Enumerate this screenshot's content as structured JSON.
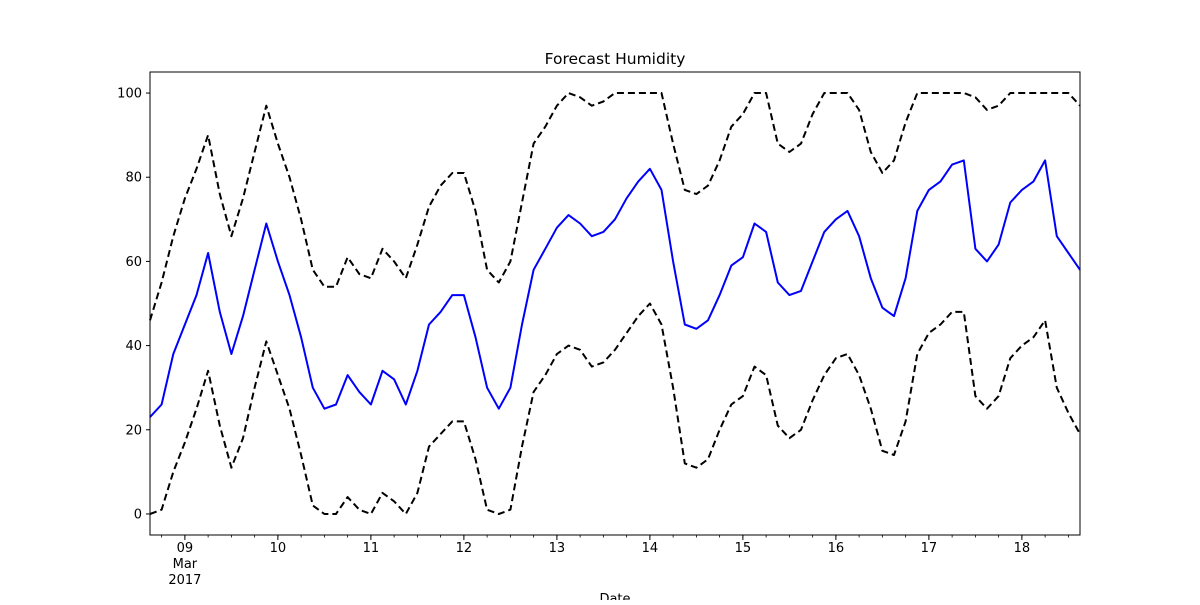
{
  "chart_data": {
    "type": "line",
    "title": "Forecast Humidity",
    "xlabel": "Date",
    "ylabel": "",
    "ylim": [
      -5,
      105
    ],
    "xlim": [
      "2017-03-08 15:00",
      "2017-03-18 15:00"
    ],
    "grid": false,
    "yticks": [
      0,
      20,
      40,
      60,
      80,
      100
    ],
    "xticks": [
      {
        "value": "2017-03-09",
        "label": "09",
        "sublabel1": "Mar",
        "sublabel2": "2017"
      },
      {
        "value": "2017-03-10",
        "label": "10"
      },
      {
        "value": "2017-03-11",
        "label": "11"
      },
      {
        "value": "2017-03-12",
        "label": "12"
      },
      {
        "value": "2017-03-13",
        "label": "13"
      },
      {
        "value": "2017-03-14",
        "label": "14"
      },
      {
        "value": "2017-03-15",
        "label": "15"
      },
      {
        "value": "2017-03-16",
        "label": "16"
      },
      {
        "value": "2017-03-17",
        "label": "17"
      },
      {
        "value": "2017-03-18",
        "label": "18"
      }
    ],
    "series": [
      {
        "color": "#0000ff",
        "style": "solid",
        "points": [
          [
            "2017-03-08 15:00",
            23
          ],
          [
            "2017-03-08 18:00",
            26
          ],
          [
            "2017-03-08 21:00",
            38
          ],
          [
            "2017-03-09 00:00",
            45
          ],
          [
            "2017-03-09 03:00",
            52
          ],
          [
            "2017-03-09 06:00",
            62
          ],
          [
            "2017-03-09 09:00",
            48
          ],
          [
            "2017-03-09 12:00",
            38
          ],
          [
            "2017-03-09 15:00",
            47
          ],
          [
            "2017-03-09 18:00",
            58
          ],
          [
            "2017-03-09 21:00",
            69
          ],
          [
            "2017-03-10 00:00",
            60
          ],
          [
            "2017-03-10 03:00",
            52
          ],
          [
            "2017-03-10 06:00",
            42
          ],
          [
            "2017-03-10 09:00",
            30
          ],
          [
            "2017-03-10 12:00",
            25
          ],
          [
            "2017-03-10 15:00",
            26
          ],
          [
            "2017-03-10 18:00",
            33
          ],
          [
            "2017-03-10 21:00",
            29
          ],
          [
            "2017-03-11 00:00",
            26
          ],
          [
            "2017-03-11 03:00",
            34
          ],
          [
            "2017-03-11 06:00",
            32
          ],
          [
            "2017-03-11 09:00",
            26
          ],
          [
            "2017-03-11 12:00",
            34
          ],
          [
            "2017-03-11 15:00",
            45
          ],
          [
            "2017-03-11 18:00",
            48
          ],
          [
            "2017-03-11 21:00",
            52
          ],
          [
            "2017-03-12 00:00",
            52
          ],
          [
            "2017-03-12 03:00",
            42
          ],
          [
            "2017-03-12 06:00",
            30
          ],
          [
            "2017-03-12 09:00",
            25
          ],
          [
            "2017-03-12 12:00",
            30
          ],
          [
            "2017-03-12 15:00",
            45
          ],
          [
            "2017-03-12 18:00",
            58
          ],
          [
            "2017-03-12 21:00",
            63
          ],
          [
            "2017-03-13 00:00",
            68
          ],
          [
            "2017-03-13 03:00",
            71
          ],
          [
            "2017-03-13 06:00",
            69
          ],
          [
            "2017-03-13 09:00",
            66
          ],
          [
            "2017-03-13 12:00",
            67
          ],
          [
            "2017-03-13 15:00",
            70
          ],
          [
            "2017-03-13 18:00",
            75
          ],
          [
            "2017-03-13 21:00",
            79
          ],
          [
            "2017-03-14 00:00",
            82
          ],
          [
            "2017-03-14 03:00",
            77
          ],
          [
            "2017-03-14 06:00",
            60
          ],
          [
            "2017-03-14 09:00",
            45
          ],
          [
            "2017-03-14 12:00",
            44
          ],
          [
            "2017-03-14 15:00",
            46
          ],
          [
            "2017-03-14 18:00",
            52
          ],
          [
            "2017-03-14 21:00",
            59
          ],
          [
            "2017-03-15 00:00",
            61
          ],
          [
            "2017-03-15 03:00",
            69
          ],
          [
            "2017-03-15 06:00",
            67
          ],
          [
            "2017-03-15 09:00",
            55
          ],
          [
            "2017-03-15 12:00",
            52
          ],
          [
            "2017-03-15 15:00",
            53
          ],
          [
            "2017-03-15 18:00",
            60
          ],
          [
            "2017-03-15 21:00",
            67
          ],
          [
            "2017-03-16 00:00",
            70
          ],
          [
            "2017-03-16 03:00",
            72
          ],
          [
            "2017-03-16 06:00",
            66
          ],
          [
            "2017-03-16 09:00",
            56
          ],
          [
            "2017-03-16 12:00",
            49
          ],
          [
            "2017-03-16 15:00",
            47
          ],
          [
            "2017-03-16 18:00",
            56
          ],
          [
            "2017-03-16 21:00",
            72
          ],
          [
            "2017-03-17 00:00",
            77
          ],
          [
            "2017-03-17 03:00",
            79
          ],
          [
            "2017-03-17 06:00",
            83
          ],
          [
            "2017-03-17 09:00",
            84
          ],
          [
            "2017-03-17 12:00",
            63
          ],
          [
            "2017-03-17 15:00",
            60
          ],
          [
            "2017-03-17 18:00",
            64
          ],
          [
            "2017-03-17 21:00",
            74
          ],
          [
            "2017-03-18 00:00",
            77
          ],
          [
            "2017-03-18 03:00",
            79
          ],
          [
            "2017-03-18 06:00",
            84
          ],
          [
            "2017-03-18 09:00",
            66
          ],
          [
            "2017-03-18 12:00",
            62
          ],
          [
            "2017-03-18 15:00",
            58
          ]
        ]
      },
      {
        "color": "#000000",
        "style": "dashed",
        "points": [
          [
            "2017-03-08 15:00",
            46
          ],
          [
            "2017-03-08 18:00",
            55
          ],
          [
            "2017-03-08 21:00",
            66
          ],
          [
            "2017-03-09 00:00",
            75
          ],
          [
            "2017-03-09 03:00",
            82
          ],
          [
            "2017-03-09 06:00",
            90
          ],
          [
            "2017-03-09 09:00",
            76
          ],
          [
            "2017-03-09 12:00",
            66
          ],
          [
            "2017-03-09 15:00",
            75
          ],
          [
            "2017-03-09 18:00",
            86
          ],
          [
            "2017-03-09 21:00",
            97
          ],
          [
            "2017-03-10 00:00",
            88
          ],
          [
            "2017-03-10 03:00",
            80
          ],
          [
            "2017-03-10 06:00",
            70
          ],
          [
            "2017-03-10 09:00",
            58
          ],
          [
            "2017-03-10 12:00",
            54
          ],
          [
            "2017-03-10 15:00",
            54
          ],
          [
            "2017-03-10 18:00",
            61
          ],
          [
            "2017-03-10 21:00",
            57
          ],
          [
            "2017-03-11 00:00",
            56
          ],
          [
            "2017-03-11 03:00",
            63
          ],
          [
            "2017-03-11 06:00",
            60
          ],
          [
            "2017-03-11 09:00",
            56
          ],
          [
            "2017-03-11 12:00",
            64
          ],
          [
            "2017-03-11 15:00",
            73
          ],
          [
            "2017-03-11 18:00",
            78
          ],
          [
            "2017-03-11 21:00",
            81
          ],
          [
            "2017-03-12 00:00",
            81
          ],
          [
            "2017-03-12 03:00",
            72
          ],
          [
            "2017-03-12 06:00",
            58
          ],
          [
            "2017-03-12 09:00",
            55
          ],
          [
            "2017-03-12 12:00",
            60
          ],
          [
            "2017-03-12 15:00",
            74
          ],
          [
            "2017-03-12 18:00",
            88
          ],
          [
            "2017-03-12 21:00",
            92
          ],
          [
            "2017-03-13 00:00",
            97
          ],
          [
            "2017-03-13 03:00",
            100
          ],
          [
            "2017-03-13 06:00",
            99
          ],
          [
            "2017-03-13 09:00",
            97
          ],
          [
            "2017-03-13 12:00",
            98
          ],
          [
            "2017-03-13 15:00",
            100
          ],
          [
            "2017-03-13 18:00",
            100
          ],
          [
            "2017-03-13 21:00",
            100
          ],
          [
            "2017-03-14 00:00",
            100
          ],
          [
            "2017-03-14 03:00",
            100
          ],
          [
            "2017-03-14 06:00",
            88
          ],
          [
            "2017-03-14 09:00",
            77
          ],
          [
            "2017-03-14 12:00",
            76
          ],
          [
            "2017-03-14 15:00",
            78
          ],
          [
            "2017-03-14 18:00",
            84
          ],
          [
            "2017-03-14 21:00",
            92
          ],
          [
            "2017-03-15 00:00",
            95
          ],
          [
            "2017-03-15 03:00",
            100
          ],
          [
            "2017-03-15 06:00",
            100
          ],
          [
            "2017-03-15 09:00",
            88
          ],
          [
            "2017-03-15 12:00",
            86
          ],
          [
            "2017-03-15 15:00",
            88
          ],
          [
            "2017-03-15 18:00",
            95
          ],
          [
            "2017-03-15 21:00",
            100
          ],
          [
            "2017-03-16 00:00",
            100
          ],
          [
            "2017-03-16 03:00",
            100
          ],
          [
            "2017-03-16 06:00",
            96
          ],
          [
            "2017-03-16 09:00",
            86
          ],
          [
            "2017-03-16 12:00",
            81
          ],
          [
            "2017-03-16 15:00",
            84
          ],
          [
            "2017-03-16 18:00",
            93
          ],
          [
            "2017-03-16 21:00",
            100
          ],
          [
            "2017-03-17 00:00",
            100
          ],
          [
            "2017-03-17 03:00",
            100
          ],
          [
            "2017-03-17 06:00",
            100
          ],
          [
            "2017-03-17 09:00",
            100
          ],
          [
            "2017-03-17 12:00",
            99
          ],
          [
            "2017-03-17 15:00",
            96
          ],
          [
            "2017-03-17 18:00",
            97
          ],
          [
            "2017-03-17 21:00",
            100
          ],
          [
            "2017-03-18 00:00",
            100
          ],
          [
            "2017-03-18 03:00",
            100
          ],
          [
            "2017-03-18 06:00",
            100
          ],
          [
            "2017-03-18 09:00",
            100
          ],
          [
            "2017-03-18 12:00",
            100
          ],
          [
            "2017-03-18 15:00",
            97
          ]
        ]
      },
      {
        "color": "#000000",
        "style": "dashed",
        "points": [
          [
            "2017-03-08 15:00",
            0
          ],
          [
            "2017-03-08 18:00",
            1
          ],
          [
            "2017-03-08 21:00",
            10
          ],
          [
            "2017-03-09 00:00",
            17
          ],
          [
            "2017-03-09 03:00",
            25
          ],
          [
            "2017-03-09 06:00",
            34
          ],
          [
            "2017-03-09 09:00",
            21
          ],
          [
            "2017-03-09 12:00",
            11
          ],
          [
            "2017-03-09 15:00",
            18
          ],
          [
            "2017-03-09 18:00",
            30
          ],
          [
            "2017-03-09 21:00",
            41
          ],
          [
            "2017-03-10 00:00",
            33
          ],
          [
            "2017-03-10 03:00",
            25
          ],
          [
            "2017-03-10 06:00",
            14
          ],
          [
            "2017-03-10 09:00",
            2
          ],
          [
            "2017-03-10 12:00",
            0
          ],
          [
            "2017-03-10 15:00",
            0
          ],
          [
            "2017-03-10 18:00",
            4
          ],
          [
            "2017-03-10 21:00",
            1
          ],
          [
            "2017-03-11 00:00",
            0
          ],
          [
            "2017-03-11 03:00",
            5
          ],
          [
            "2017-03-11 06:00",
            3
          ],
          [
            "2017-03-11 09:00",
            0
          ],
          [
            "2017-03-11 12:00",
            5
          ],
          [
            "2017-03-11 15:00",
            16
          ],
          [
            "2017-03-11 18:00",
            19
          ],
          [
            "2017-03-11 21:00",
            22
          ],
          [
            "2017-03-12 00:00",
            22
          ],
          [
            "2017-03-12 03:00",
            13
          ],
          [
            "2017-03-12 06:00",
            1
          ],
          [
            "2017-03-12 09:00",
            0
          ],
          [
            "2017-03-12 12:00",
            1
          ],
          [
            "2017-03-12 15:00",
            16
          ],
          [
            "2017-03-12 18:00",
            29
          ],
          [
            "2017-03-12 21:00",
            33
          ],
          [
            "2017-03-13 00:00",
            38
          ],
          [
            "2017-03-13 03:00",
            40
          ],
          [
            "2017-03-13 06:00",
            39
          ],
          [
            "2017-03-13 09:00",
            35
          ],
          [
            "2017-03-13 12:00",
            36
          ],
          [
            "2017-03-13 15:00",
            39
          ],
          [
            "2017-03-13 18:00",
            43
          ],
          [
            "2017-03-13 21:00",
            47
          ],
          [
            "2017-03-14 00:00",
            50
          ],
          [
            "2017-03-14 03:00",
            45
          ],
          [
            "2017-03-14 06:00",
            30
          ],
          [
            "2017-03-14 09:00",
            12
          ],
          [
            "2017-03-14 12:00",
            11
          ],
          [
            "2017-03-14 15:00",
            13
          ],
          [
            "2017-03-14 18:00",
            20
          ],
          [
            "2017-03-14 21:00",
            26
          ],
          [
            "2017-03-15 00:00",
            28
          ],
          [
            "2017-03-15 03:00",
            35
          ],
          [
            "2017-03-15 06:00",
            33
          ],
          [
            "2017-03-15 09:00",
            21
          ],
          [
            "2017-03-15 12:00",
            18
          ],
          [
            "2017-03-15 15:00",
            20
          ],
          [
            "2017-03-15 18:00",
            27
          ],
          [
            "2017-03-15 21:00",
            33
          ],
          [
            "2017-03-16 00:00",
            37
          ],
          [
            "2017-03-16 03:00",
            38
          ],
          [
            "2017-03-16 06:00",
            33
          ],
          [
            "2017-03-16 09:00",
            25
          ],
          [
            "2017-03-16 12:00",
            15
          ],
          [
            "2017-03-16 15:00",
            14
          ],
          [
            "2017-03-16 18:00",
            22
          ],
          [
            "2017-03-16 21:00",
            38
          ],
          [
            "2017-03-17 00:00",
            43
          ],
          [
            "2017-03-17 03:00",
            45
          ],
          [
            "2017-03-17 06:00",
            48
          ],
          [
            "2017-03-17 09:00",
            48
          ],
          [
            "2017-03-17 12:00",
            28
          ],
          [
            "2017-03-17 15:00",
            25
          ],
          [
            "2017-03-17 18:00",
            28
          ],
          [
            "2017-03-17 21:00",
            37
          ],
          [
            "2017-03-18 00:00",
            40
          ],
          [
            "2017-03-18 03:00",
            42
          ],
          [
            "2017-03-18 06:00",
            46
          ],
          [
            "2017-03-18 09:00",
            30
          ],
          [
            "2017-03-18 12:00",
            24
          ],
          [
            "2017-03-18 15:00",
            19
          ]
        ]
      }
    ]
  }
}
